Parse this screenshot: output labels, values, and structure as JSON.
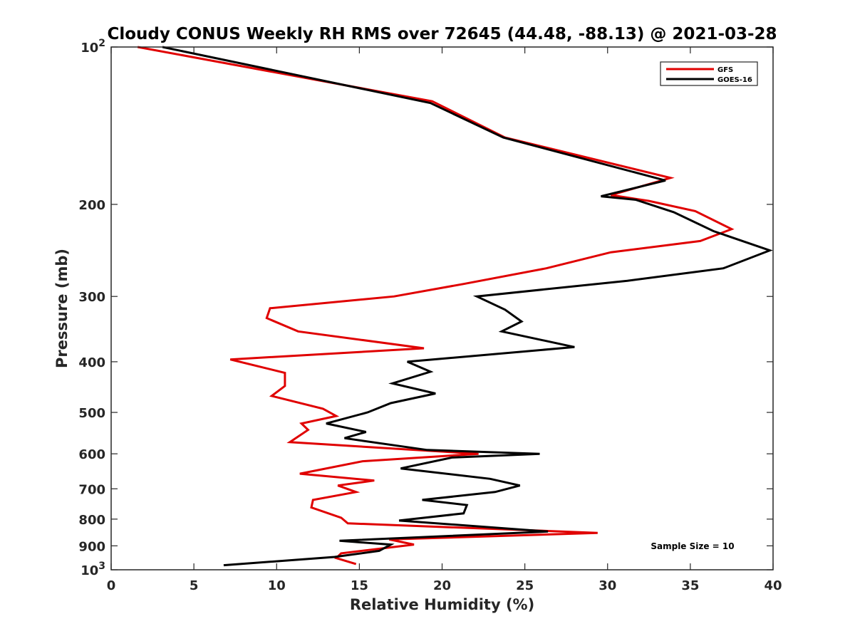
{
  "chart_data": {
    "type": "line",
    "title": "Cloudy CONUS Weekly RH RMS over 72645 (44.48, -88.13) @ 2021-03-28",
    "xlabel": "Relative Humidity (%)",
    "ylabel": "Pressure (mb)",
    "xlim": [
      0,
      40
    ],
    "ylim": [
      100,
      1000
    ],
    "y_scale": "log",
    "y_reversed": true,
    "grid": false,
    "legend_position": "top-right",
    "x_ticks": [
      "0",
      "5",
      "10",
      "15",
      "20",
      "25",
      "30",
      "35",
      "40"
    ],
    "y_ticks": [
      {
        "value": 100,
        "label": "10",
        "exp": "2"
      },
      {
        "value": 200,
        "label": "200"
      },
      {
        "value": 300,
        "label": "300"
      },
      {
        "value": 400,
        "label": "400"
      },
      {
        "value": 500,
        "label": "500"
      },
      {
        "value": 600,
        "label": "600"
      },
      {
        "value": 700,
        "label": "700"
      },
      {
        "value": 800,
        "label": "800"
      },
      {
        "value": 900,
        "label": "900"
      },
      {
        "value": 1000,
        "label": "10",
        "exp": "3"
      }
    ],
    "annotation": "Sample Size = 10",
    "series": [
      {
        "name": "GFS",
        "color": "#e00000",
        "x": [
          1.6,
          19.4,
          23.8,
          33.8,
          30.2,
          32.5,
          35.3,
          37.5,
          35.6,
          30.2,
          26.3,
          21.3,
          17.1,
          9.6,
          9.4,
          11.3,
          18.9,
          7.2,
          10.5,
          10.5,
          9.7,
          12.8,
          13.6,
          11.5,
          11.9,
          10.8,
          22.2,
          15.2,
          11.4,
          15.9,
          13.7,
          14.8,
          12.2,
          12.1,
          13.9,
          14.3,
          29.4,
          16.8,
          18.3,
          13.9,
          13.6,
          14.8
        ],
        "y": [
          100,
          127,
          149,
          178,
          192,
          197,
          206,
          223,
          235,
          247,
          265,
          284,
          300,
          316,
          330,
          350,
          377,
          396,
          420,
          445,
          465,
          492,
          508,
          525,
          540,
          570,
          600,
          620,
          655,
          675,
          690,
          710,
          735,
          760,
          795,
          815,
          850,
          875,
          895,
          930,
          950,
          975
        ]
      },
      {
        "name": "GOES-16",
        "color": "#000000",
        "x": [
          3.1,
          19.3,
          23.7,
          33.5,
          29.6,
          31.7,
          34,
          36.4,
          39.8,
          37,
          31.2,
          22.1,
          23.8,
          24.8,
          23.6,
          28,
          17.9,
          19.3,
          17,
          19.6,
          16.9,
          15.5,
          13,
          15.4,
          14.1,
          19.1,
          25.9,
          20.6,
          17.5,
          22.9,
          24.7,
          23.2,
          18.8,
          21.5,
          21.3,
          17.4,
          26.4,
          13.8,
          16.9,
          16.2,
          13.5,
          6.8
        ],
        "y": [
          100,
          128,
          149,
          180,
          193,
          196,
          207,
          225,
          245,
          265,
          280,
          300,
          318,
          335,
          350,
          375,
          400,
          418,
          440,
          460,
          480,
          500,
          525,
          545,
          560,
          590,
          600,
          610,
          640,
          670,
          690,
          710,
          735,
          752,
          780,
          805,
          845,
          880,
          895,
          920,
          945,
          980
        ]
      }
    ]
  }
}
